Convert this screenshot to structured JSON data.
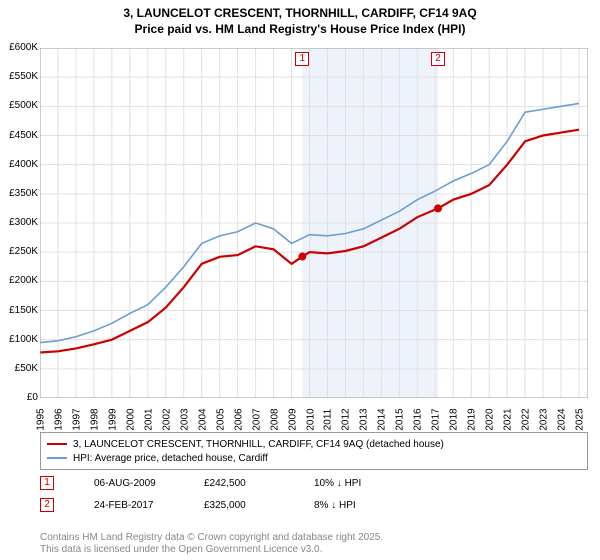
{
  "title_line1": "3, LAUNCELOT CRESCENT, THORNHILL, CARDIFF, CF14 9AQ",
  "title_line2": "Price paid vs. HM Land Registry's House Price Index (HPI)",
  "chart": {
    "type": "line",
    "xlim": [
      1995,
      2025.5
    ],
    "ylim": [
      0,
      600000
    ],
    "ytick_step": 50000,
    "xticks": [
      1995,
      1996,
      1997,
      1998,
      1999,
      2000,
      2001,
      2002,
      2003,
      2004,
      2005,
      2006,
      2007,
      2008,
      2009,
      2010,
      2011,
      2012,
      2013,
      2014,
      2015,
      2016,
      2017,
      2018,
      2019,
      2020,
      2021,
      2022,
      2023,
      2024,
      2025
    ],
    "background_color": "#ffffff",
    "grid_color": "#e0e0e0",
    "shaded_band": {
      "from": 2009.6,
      "to": 2017.15,
      "color": "#eef3fb"
    },
    "series": [
      {
        "name": "property",
        "color": "#cc0000",
        "width": 2.2,
        "points": [
          [
            1995,
            78000
          ],
          [
            1996,
            80000
          ],
          [
            1997,
            85000
          ],
          [
            1998,
            92000
          ],
          [
            1999,
            100000
          ],
          [
            2000,
            115000
          ],
          [
            2001,
            130000
          ],
          [
            2002,
            155000
          ],
          [
            2003,
            190000
          ],
          [
            2004,
            230000
          ],
          [
            2005,
            242000
          ],
          [
            2006,
            245000
          ],
          [
            2007,
            260000
          ],
          [
            2008,
            255000
          ],
          [
            2009,
            230000
          ],
          [
            2009.6,
            242500
          ],
          [
            2010,
            250000
          ],
          [
            2011,
            248000
          ],
          [
            2012,
            252000
          ],
          [
            2013,
            260000
          ],
          [
            2014,
            275000
          ],
          [
            2015,
            290000
          ],
          [
            2016,
            310000
          ],
          [
            2017.15,
            325000
          ],
          [
            2018,
            340000
          ],
          [
            2019,
            350000
          ],
          [
            2020,
            365000
          ],
          [
            2021,
            400000
          ],
          [
            2022,
            440000
          ],
          [
            2023,
            450000
          ],
          [
            2024,
            455000
          ],
          [
            2025,
            460000
          ]
        ]
      },
      {
        "name": "hpi",
        "color": "#6a9ed4",
        "width": 1.6,
        "points": [
          [
            1995,
            95000
          ],
          [
            1996,
            98000
          ],
          [
            1997,
            105000
          ],
          [
            1998,
            115000
          ],
          [
            1999,
            128000
          ],
          [
            2000,
            145000
          ],
          [
            2001,
            160000
          ],
          [
            2002,
            190000
          ],
          [
            2003,
            225000
          ],
          [
            2004,
            265000
          ],
          [
            2005,
            278000
          ],
          [
            2006,
            285000
          ],
          [
            2007,
            300000
          ],
          [
            2008,
            290000
          ],
          [
            2009,
            265000
          ],
          [
            2010,
            280000
          ],
          [
            2011,
            278000
          ],
          [
            2012,
            282000
          ],
          [
            2013,
            290000
          ],
          [
            2014,
            305000
          ],
          [
            2015,
            320000
          ],
          [
            2016,
            340000
          ],
          [
            2017,
            355000
          ],
          [
            2018,
            372000
          ],
          [
            2019,
            385000
          ],
          [
            2020,
            400000
          ],
          [
            2021,
            440000
          ],
          [
            2022,
            490000
          ],
          [
            2023,
            495000
          ],
          [
            2024,
            500000
          ],
          [
            2025,
            505000
          ]
        ]
      }
    ],
    "sale_markers": [
      {
        "n": 1,
        "x": 2009.6,
        "y": 242500,
        "color": "#cc0000"
      },
      {
        "n": 2,
        "x": 2017.15,
        "y": 325000,
        "color": "#cc0000"
      }
    ]
  },
  "yaxis_labels": [
    "£0",
    "£50K",
    "£100K",
    "£150K",
    "£200K",
    "£250K",
    "£300K",
    "£350K",
    "£400K",
    "£450K",
    "£500K",
    "£550K",
    "£600K"
  ],
  "legend": {
    "property": "3, LAUNCELOT CRESCENT, THORNHILL, CARDIFF, CF14 9AQ (detached house)",
    "hpi": "HPI: Average price, detached house, Cardiff"
  },
  "annotations": [
    {
      "n": "1",
      "date": "06-AUG-2009",
      "price": "£242,500",
      "delta": "10% ↓ HPI",
      "color": "#cc0000"
    },
    {
      "n": "2",
      "date": "24-FEB-2017",
      "price": "£325,000",
      "delta": "8% ↓ HPI",
      "color": "#cc0000"
    }
  ],
  "footer_line1": "Contains HM Land Registry data © Crown copyright and database right 2025.",
  "footer_line2": "This data is licensed under the Open Government Licence v3.0."
}
